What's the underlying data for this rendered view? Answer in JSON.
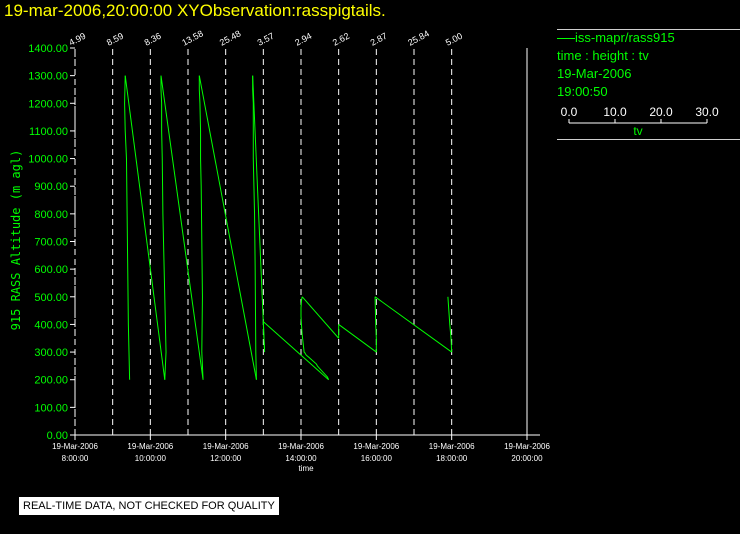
{
  "title": "19-mar-2006,20:00:00  XYObservation:rasspigtails.",
  "legend": {
    "series_label": "iss-mapr/rass915",
    "line2": "time : height : tv",
    "line3": "19-Mar-2006",
    "line4": "19:00:50",
    "scale_ticks": [
      "0.0",
      "10.0",
      "20.0",
      "30.0"
    ],
    "scale_label": "tv"
  },
  "note": "REAL-TIME DATA, NOT CHECKED FOR QUALITY",
  "colors": {
    "background": "#000000",
    "title": "#ffff00",
    "data": "#00ff00",
    "axes": "#ffffff",
    "note_bg": "#ffffff"
  },
  "chart_data": {
    "type": "line",
    "title": "",
    "ylabel": "915 RASS Altitude (m agl)",
    "xlabel": "time",
    "ylim": [
      0,
      1400
    ],
    "yticks": [
      "0.00",
      "100.00",
      "200.00",
      "300.00",
      "400.00",
      "500.00",
      "600.00",
      "700.00",
      "800.00",
      "900.00",
      "1000.00",
      "1100.00",
      "1200.00",
      "1300.00",
      "1400.00"
    ],
    "xlim": [
      "2006-03-19 08:00",
      "2006-03-19 20:00"
    ],
    "xticks": [
      {
        "date": "19-Mar-2006",
        "time": "8:00:00"
      },
      {
        "date": "19-Mar-2006",
        "time": "10:00:00"
      },
      {
        "date": "19-Mar-2006",
        "time": "12:00:00"
      },
      {
        "date": "19-Mar-2006",
        "time": "14:00:00"
      },
      {
        "date": "19-Mar-2006",
        "time": "16:00:00"
      },
      {
        "date": "19-Mar-2006",
        "time": "18:00:00"
      },
      {
        "date": "19-Mar-2006",
        "time": "20:00:00"
      }
    ],
    "tv_scale": [
      0,
      30
    ],
    "profiles": [
      {
        "time": "08:00",
        "top_label": "4.99",
        "tv": [],
        "height": []
      },
      {
        "time": "09:00",
        "top_label": "8.59",
        "tv": [
          13.5,
          13.0,
          12.5,
          12.0,
          11.5,
          11.0,
          10.0,
          9.5,
          10.0
        ],
        "height": [
          200,
          300,
          400,
          600,
          800,
          1000,
          1100,
          1200,
          1300
        ]
      },
      {
        "time": "10:00",
        "top_label": "8.36",
        "tv": [
          11.5,
          12.5,
          12.0,
          11.0,
          10.0,
          9.5,
          9.0,
          9.0,
          8.5,
          8.5
        ],
        "height": [
          200,
          300,
          400,
          600,
          800,
          1000,
          1100,
          1200,
          1250,
          1300
        ]
      },
      {
        "time": "11:00",
        "top_label": "13.58",
        "tv": [
          12.0,
          11.0,
          11.5,
          11.0,
          10.5,
          10.0,
          10.0,
          9.5,
          9.0,
          9.0
        ],
        "height": [
          200,
          300,
          500,
          700,
          900,
          1000,
          1100,
          1200,
          1250,
          1300
        ]
      },
      {
        "time": "12:00",
        "top_label": "25.48",
        "tv": [
          24.5,
          24.0,
          23.5,
          23.0,
          22.5,
          22.0,
          22.0,
          22.0,
          22.0,
          21.5,
          21.5
        ],
        "height": [
          200,
          300,
          600,
          800,
          900,
          1000,
          1100,
          1150,
          1200,
          1250,
          1300
        ]
      },
      {
        "time": "13:00",
        "top_label": "3.57",
        "tv": [
          1.0,
          0.5,
          0.0
        ],
        "height": [
          300,
          350,
          410
        ]
      },
      {
        "time": "14:00",
        "top_label": "2.94",
        "tv": [
          22.0,
          21.0,
          20.0,
          19.0,
          18.0,
          17.0,
          16.0,
          15.0,
          14.0,
          13.0,
          12.5,
          12.0,
          11.0,
          10.0,
          9.0,
          8.0,
          7.0,
          6.0,
          5.0,
          4.0,
          3.5,
          3.0,
          2.5,
          2.0,
          1.5,
          1.0,
          0.5,
          0.0,
          0.0,
          0.5,
          1.0
        ],
        "height": [
          200,
          210,
          215,
          220,
          225,
          230,
          235,
          240,
          245,
          250,
          255,
          258,
          262,
          266,
          270,
          274,
          278,
          282,
          286,
          290,
          294,
          298,
          300,
          320,
          340,
          360,
          390,
          430,
          460,
          490,
          500
        ]
      },
      {
        "time": "15:00",
        "top_label": "2.62",
        "tv": [
          0.0,
          0.0,
          0.0
        ],
        "height": [
          350,
          370,
          400
        ]
      },
      {
        "time": "16:00",
        "top_label": "2.87",
        "tv": [
          0.0,
          0.0,
          -0.5,
          -1.0
        ],
        "height": [
          300,
          350,
          400,
          500
        ]
      },
      {
        "time": "17:00",
        "top_label": "25.84",
        "tv": [],
        "height": []
      },
      {
        "time": "18:00",
        "top_label": "5.00",
        "tv": [
          0.0,
          -0.5,
          -1.5,
          -3.0
        ],
        "height": [
          300,
          350,
          400,
          500
        ]
      },
      {
        "time": "19:00",
        "top_label": "",
        "tv": [],
        "height": []
      }
    ]
  }
}
